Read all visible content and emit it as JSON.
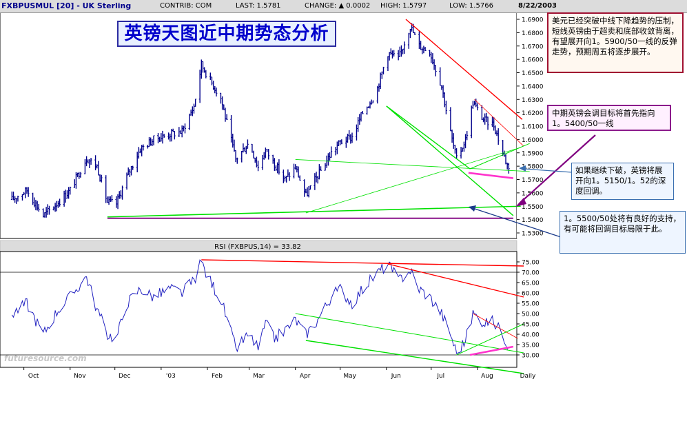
{
  "header": {
    "symbol": "FXBPUSMUL [20] - UK Sterling",
    "contrib": "CONTRIB: COM",
    "last": "LAST: 1.5781",
    "change": "CHANGE: ▲ 0.0002",
    "high": "HIGH: 1.5797",
    "low": "LOW: 1.5766",
    "date": "8/22/2003"
  },
  "title": "英镑天图近中期势态分析",
  "rsi_label": "RSI (FXBPUS,14) = 33.82",
  "watermark": "futuresource.com",
  "annotations": {
    "box1": "美元已经突破中线下降趋势的压制，短线英镑由于超卖和底部收敛背离，有望展开向1。5900/50一线的反弹走势，预期周五将逐步展开。",
    "box2": "中期英镑会调目标将首先指向1。5400/50一线",
    "box3": "如果继续下破，英镑将展开向1。5150/1。52的深度回调。",
    "box4": "1。5500/50处将有良好的支持，有可能将回调目标局限于此。"
  },
  "colors": {
    "price": "#00008b",
    "rsi": "#2020c0",
    "red_trend": "#ff0000",
    "green_trend": "#00e000",
    "magenta": "#ff33cc",
    "purple": "#800080",
    "title_text": "#0000cc"
  },
  "chart_data": [
    {
      "type": "bar",
      "title": "FXBPUSMUL [20] - UK Sterling",
      "periodicity": "Daily",
      "x_labels": [
        "Oct",
        "Nov",
        "Dec",
        "'03",
        "Feb",
        "Mar",
        "Apr",
        "May",
        "Jun",
        "Jul",
        "Aug",
        "Daily"
      ],
      "yticks": [
        "1.6900",
        "1.6800",
        "1.6700",
        "1.6600",
        "1.6500",
        "1.6400",
        "1.6300",
        "1.6200",
        "1.6100",
        "1.6000",
        "1.5900",
        "1.5800",
        "1.5700",
        "1.5600",
        "1.5500",
        "1.5400",
        "1.5300"
      ],
      "ylim": [
        1.525,
        1.695
      ],
      "close_anchors": [
        [
          "2002-09-23",
          1.555
        ],
        [
          "2002-10-03",
          1.562
        ],
        [
          "2002-10-14",
          1.543
        ],
        [
          "2002-10-24",
          1.553
        ],
        [
          "2002-11-01",
          1.562
        ],
        [
          "2002-11-12",
          1.586
        ],
        [
          "2002-11-19",
          1.58
        ],
        [
          "2002-11-26",
          1.553
        ],
        [
          "2002-12-02",
          1.552
        ],
        [
          "2002-12-09",
          1.572
        ],
        [
          "2002-12-18",
          1.593
        ],
        [
          "2002-12-27",
          1.6
        ],
        [
          "2003-01-07",
          1.604
        ],
        [
          "2003-01-15",
          1.606
        ],
        [
          "2003-01-23",
          1.625
        ],
        [
          "2003-01-28",
          1.656
        ],
        [
          "2003-02-01",
          1.648
        ],
        [
          "2003-02-10",
          1.631
        ],
        [
          "2003-02-20",
          1.585
        ],
        [
          "2003-03-01",
          1.598
        ],
        [
          "2003-03-07",
          1.579
        ],
        [
          "2003-03-12",
          1.592
        ],
        [
          "2003-03-18",
          1.582
        ],
        [
          "2003-03-25",
          1.57
        ],
        [
          "2003-04-01",
          1.579
        ],
        [
          "2003-04-08",
          1.558
        ],
        [
          "2003-04-16",
          1.573
        ],
        [
          "2003-04-25",
          1.59
        ],
        [
          "2003-05-01",
          1.598
        ],
        [
          "2003-05-09",
          1.602
        ],
        [
          "2003-05-16",
          1.62
        ],
        [
          "2003-05-25",
          1.635
        ],
        [
          "2003-06-02",
          1.665
        ],
        [
          "2003-06-09",
          1.66
        ],
        [
          "2003-06-17",
          1.685
        ],
        [
          "2003-06-23",
          1.67
        ],
        [
          "2003-06-30",
          1.666
        ],
        [
          "2003-07-08",
          1.64
        ],
        [
          "2003-07-14",
          1.605
        ],
        [
          "2003-07-18",
          1.585
        ],
        [
          "2003-07-24",
          1.6
        ],
        [
          "2003-07-29",
          1.628
        ],
        [
          "2003-08-05",
          1.615
        ],
        [
          "2003-08-12",
          1.611
        ],
        [
          "2003-08-18",
          1.59
        ],
        [
          "2003-08-22",
          1.5781
        ]
      ],
      "last": 1.5781,
      "high": 1.5797,
      "low": 1.5766
    },
    {
      "type": "line",
      "title": "RSI (FXBPUS,14) = 33.82",
      "yticks": [
        "75.00",
        "70.00",
        "65.00",
        "60.00",
        "55.00",
        "50.00",
        "45.00",
        "40.00",
        "35.00",
        "30.00"
      ],
      "ylim": [
        25,
        78
      ],
      "reference_lines": [
        70,
        30
      ],
      "anchors": [
        [
          "2002-09-23",
          50
        ],
        [
          "2002-10-03",
          55
        ],
        [
          "2002-10-14",
          40
        ],
        [
          "2002-10-24",
          52
        ],
        [
          "2002-11-01",
          58
        ],
        [
          "2002-11-12",
          68
        ],
        [
          "2002-11-19",
          52
        ],
        [
          "2002-11-26",
          40
        ],
        [
          "2002-12-02",
          38
        ],
        [
          "2002-12-09",
          55
        ],
        [
          "2002-12-18",
          62
        ],
        [
          "2002-12-27",
          58
        ],
        [
          "2003-01-07",
          62
        ],
        [
          "2003-01-15",
          60
        ],
        [
          "2003-01-23",
          66
        ],
        [
          "2003-01-28",
          75
        ],
        [
          "2003-02-01",
          68
        ],
        [
          "2003-02-10",
          57
        ],
        [
          "2003-02-20",
          33
        ],
        [
          "2003-03-01",
          40
        ],
        [
          "2003-03-07",
          33
        ],
        [
          "2003-03-12",
          45
        ],
        [
          "2003-03-18",
          38
        ],
        [
          "2003-03-25",
          42
        ],
        [
          "2003-04-01",
          47
        ],
        [
          "2003-04-08",
          40
        ],
        [
          "2003-04-16",
          47
        ],
        [
          "2003-04-25",
          58
        ],
        [
          "2003-05-01",
          62
        ],
        [
          "2003-05-09",
          55
        ],
        [
          "2003-05-16",
          62
        ],
        [
          "2003-05-25",
          69
        ],
        [
          "2003-06-02",
          74
        ],
        [
          "2003-06-09",
          66
        ],
        [
          "2003-06-17",
          71
        ],
        [
          "2003-06-23",
          62
        ],
        [
          "2003-06-30",
          58
        ],
        [
          "2003-07-08",
          50
        ],
        [
          "2003-07-14",
          40
        ],
        [
          "2003-07-18",
          31
        ],
        [
          "2003-07-24",
          37
        ],
        [
          "2003-07-29",
          50
        ],
        [
          "2003-08-05",
          46
        ],
        [
          "2003-08-12",
          46
        ],
        [
          "2003-08-18",
          40
        ],
        [
          "2003-08-22",
          33.82
        ]
      ]
    }
  ],
  "overlays": {
    "price_lines": [
      {
        "color": "red_trend",
        "width": 1.4,
        "from": [
          "2003-06-14",
          1.69
        ],
        "to": [
          "2003-08-31",
          1.615
        ]
      },
      {
        "color": "red_trend",
        "width": 0.8,
        "from": [
          "2003-07-30",
          1.63
        ],
        "to": [
          "2003-09-01",
          1.595
        ]
      },
      {
        "color": "green_trend",
        "width": 1.4,
        "from": [
          "2003-06-01",
          1.625
        ],
        "to": [
          "2003-07-27",
          1.578
        ]
      },
      {
        "color": "green_trend",
        "width": 1.4,
        "from": [
          "2003-06-01",
          1.625
        ],
        "to": [
          "2003-08-25",
          1.543
        ]
      },
      {
        "color": "green_trend",
        "width": 1.0,
        "from": [
          "2003-07-27",
          1.578
        ],
        "to": [
          "2003-09-05",
          1.597
        ]
      },
      {
        "color": "green_trend",
        "width": 0.8,
        "from": [
          "2003-04-01",
          1.585
        ],
        "to": [
          "2003-09-05",
          1.576
        ]
      },
      {
        "color": "green_trend",
        "width": 0.8,
        "from": [
          "2003-04-08",
          1.545
        ],
        "to": [
          "2003-08-30",
          1.594
        ]
      },
      {
        "color": "green_trend",
        "width": 1.6,
        "from": [
          "2002-11-26",
          1.542
        ],
        "to": [
          "2003-08-30",
          1.55
        ]
      },
      {
        "color": "purple",
        "width": 1.8,
        "from": [
          "2002-11-26",
          1.541
        ],
        "to": [
          "2003-08-25",
          1.541
        ]
      },
      {
        "color": "magenta",
        "width": 2.6,
        "from": [
          "2003-07-26",
          1.575
        ],
        "to": [
          "2003-08-25",
          1.571
        ]
      }
    ],
    "rsi_lines": [
      {
        "color": "red_trend",
        "width": 1.4,
        "from": [
          "2003-01-28",
          76
        ],
        "to": [
          "2003-09-01",
          73
        ]
      },
      {
        "color": "red_trend",
        "width": 1.4,
        "from": [
          "2003-06-02",
          74
        ],
        "to": [
          "2003-09-01",
          58
        ]
      },
      {
        "color": "red_trend",
        "width": 0.8,
        "from": [
          "2003-07-29",
          50
        ],
        "to": [
          "2003-08-28",
          38
        ]
      },
      {
        "color": "green_trend",
        "width": 1.0,
        "from": [
          "2003-04-01",
          50
        ],
        "to": [
          "2003-09-01",
          31
        ]
      },
      {
        "color": "green_trend",
        "width": 1.4,
        "from": [
          "2003-04-08",
          37
        ],
        "to": [
          "2003-09-01",
          21
        ]
      },
      {
        "color": "green_trend",
        "width": 1.0,
        "from": [
          "2003-07-18",
          30
        ],
        "to": [
          "2003-09-01",
          45
        ]
      },
      {
        "color": "magenta",
        "width": 2.6,
        "from": [
          "2003-07-27",
          30
        ],
        "to": [
          "2003-08-25",
          34
        ]
      }
    ]
  }
}
